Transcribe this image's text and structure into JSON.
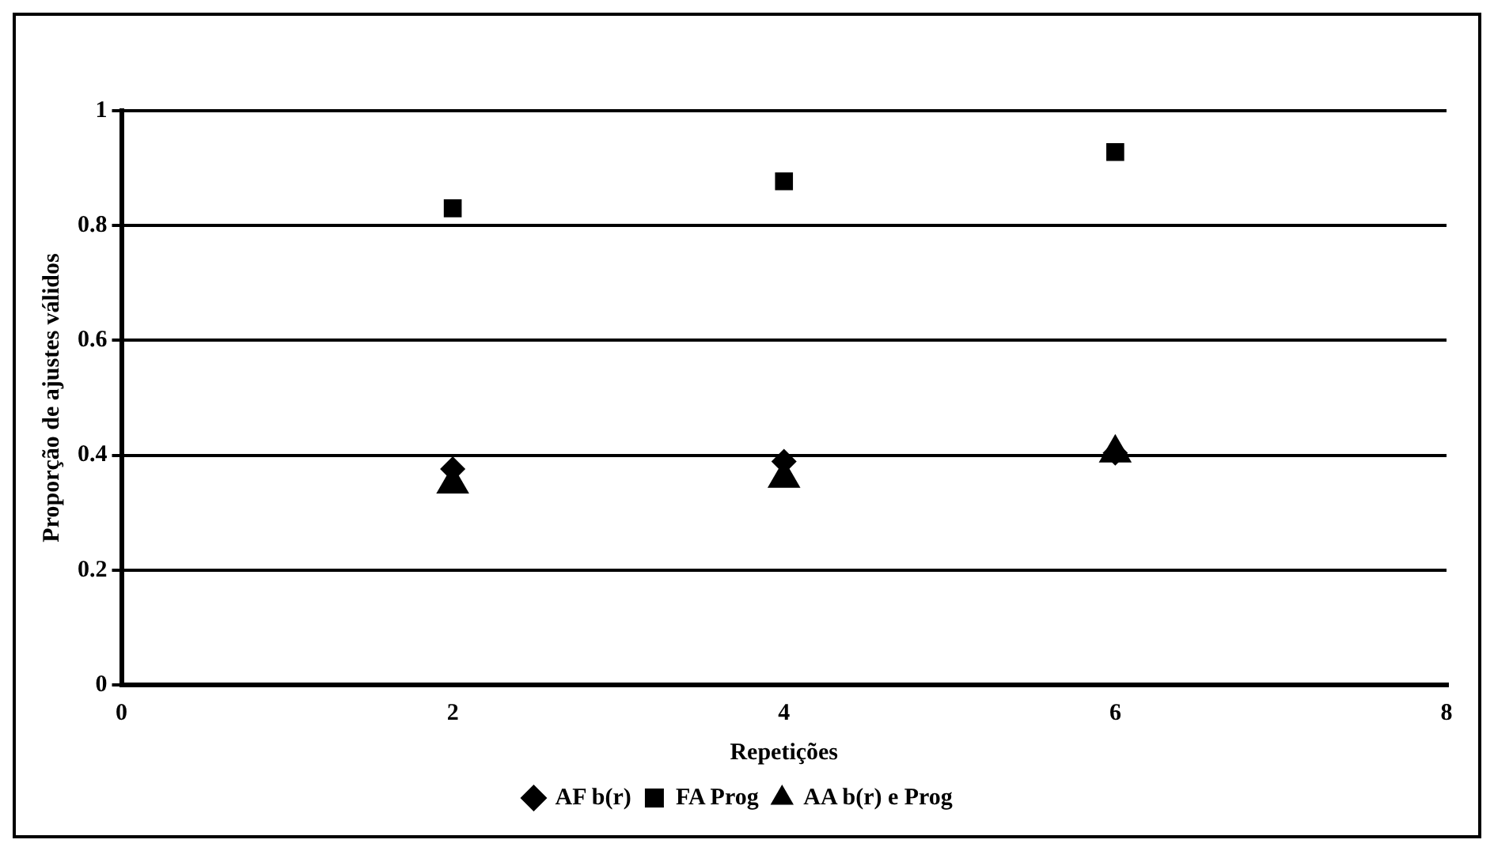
{
  "chart_data": {
    "type": "scatter",
    "xlabel": "Repetições",
    "ylabel": "Proporção de ajustes válidos",
    "x": [
      2,
      4,
      6
    ],
    "series": [
      {
        "name": "AF b(r)",
        "color": "#000000",
        "marker": "diamond",
        "values": [
          0.376,
          0.389,
          0.404
        ]
      },
      {
        "name": "FA Prog",
        "color": "#000000",
        "marker": "square",
        "values": [
          0.83,
          0.877,
          0.928
        ]
      },
      {
        "name": "AA b(r) e Prog",
        "color": "#000000",
        "marker": "triangle",
        "values": [
          0.35,
          0.36,
          0.404
        ]
      }
    ],
    "xlim": [
      0,
      8
    ],
    "xticks": [
      0,
      2,
      4,
      6,
      8
    ],
    "ylim": [
      0,
      1
    ],
    "yticks": [
      0,
      0.2,
      0.4,
      0.6,
      0.8,
      1
    ],
    "grid": "y",
    "legend": "bottom"
  }
}
